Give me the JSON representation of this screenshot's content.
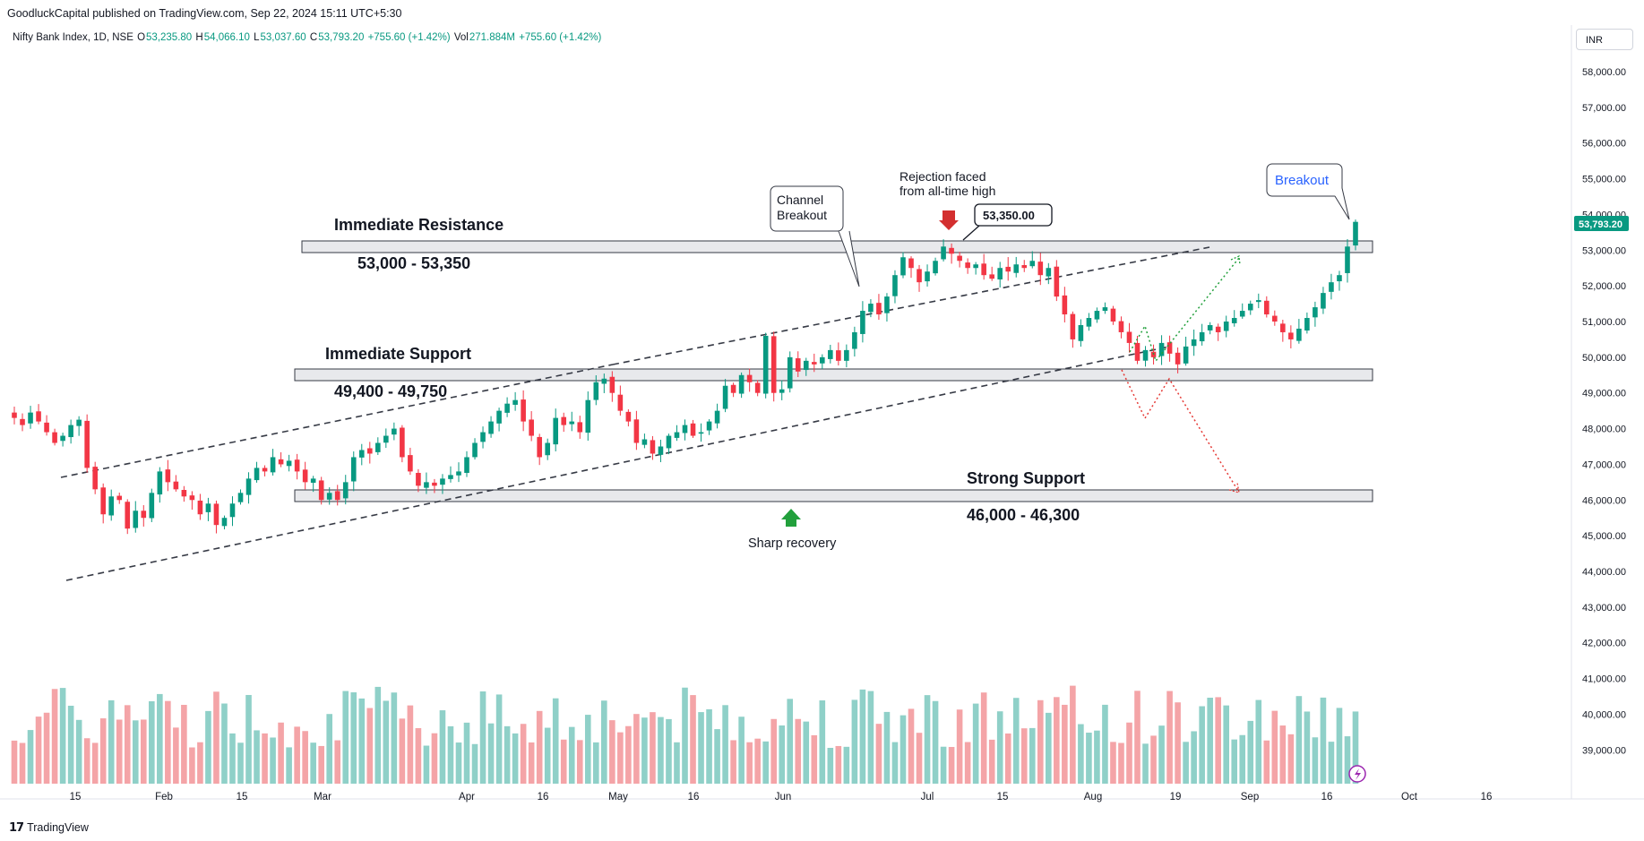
{
  "header": {
    "published_by": "GoodluckCapital published on TradingView.com, Sep 22, 2024 15:11 UTC+5:30"
  },
  "legend": {
    "symbol": "Nifty Bank Index, 1D, NSE",
    "open_label": "O",
    "open": "53,235.80",
    "high_label": "H",
    "high": "54,066.10",
    "low_label": "L",
    "low": "53,037.60",
    "close_label": "C",
    "close": "53,793.20",
    "change": "+755.60 (+1.42%)",
    "vol_label": "Vol",
    "vol": "271.884M",
    "change2": "+755.60 (+1.42%)"
  },
  "currency": "INR",
  "footer": {
    "brand": "TradingView"
  },
  "colors": {
    "up": "#089981",
    "down": "#f23645",
    "vol_up": "#8fd0c8",
    "vol_down": "#f4a4a7"
  },
  "annotations": {
    "immediate_resistance": "Immediate Resistance",
    "immediate_resistance_range": "53,000 - 53,350",
    "immediate_support": "Immediate Support",
    "immediate_support_range": "49,400 - 49,750",
    "strong_support": "Strong Support",
    "strong_support_range": "46,000 - 46,300",
    "channel_breakout_1": "Channel",
    "channel_breakout_2": "Breakout",
    "rejection_1": "Rejection faced",
    "rejection_2": "from all-time high",
    "ath_price": "53,350.00",
    "breakout": "Breakout",
    "sharp_recovery": "Sharp recovery",
    "last_price": "53,793.20"
  },
  "chart_data": {
    "type": "candlestick",
    "title": "Nifty Bank Index, 1D, NSE",
    "ylim": [
      38000,
      58500
    ],
    "y_ticks": [
      "39,000.00",
      "40,000.00",
      "41,000.00",
      "42,000.00",
      "43,000.00",
      "44,000.00",
      "45,000.00",
      "46,000.00",
      "47,000.00",
      "48,000.00",
      "49,000.00",
      "50,000.00",
      "51,000.00",
      "52,000.00",
      "53,000.00",
      "54,000.00",
      "55,000.00",
      "56,000.00",
      "57,000.00",
      "58,000.00"
    ],
    "x_ticks": [
      "15",
      "Feb",
      "15",
      "Mar",
      "Apr",
      "16",
      "May",
      "16",
      "Jun",
      "Jul",
      "15",
      "Aug",
      "19",
      "Sep",
      "16",
      "Oct",
      "16"
    ],
    "zones": [
      {
        "name": "Immediate Resistance",
        "low": 53000,
        "high": 53350
      },
      {
        "name": "Immediate Support",
        "low": 49400,
        "high": 49750
      },
      {
        "name": "Strong Support",
        "low": 46000,
        "high": 46300
      }
    ],
    "closes": [
      48300,
      48100,
      48450,
      48200,
      47900,
      47600,
      47800,
      48100,
      48250,
      46900,
      46300,
      45600,
      46100,
      46000,
      45200,
      45700,
      45500,
      46200,
      46800,
      46500,
      46300,
      46100,
      46000,
      45600,
      45900,
      45300,
      45500,
      45900,
      46200,
      46600,
      46900,
      46800,
      47200,
      47000,
      47100,
      46800,
      46500,
      46600,
      46000,
      46200,
      46000,
      46500,
      47200,
      47400,
      47300,
      47600,
      47800,
      48000,
      47200,
      46800,
      46400,
      46500,
      46400,
      46600,
      46700,
      46800,
      47200,
      47600,
      47900,
      48200,
      48500,
      48700,
      48800,
      48200,
      47800,
      47200,
      47600,
      48300,
      48100,
      48200,
      47900,
      48800,
      49300,
      49400,
      49000,
      48500,
      48200,
      47600,
      47700,
      47300,
      47500,
      47800,
      47900,
      48100,
      47800,
      47900,
      48200,
      48500,
      49200,
      49000,
      49500,
      49300,
      49000,
      50600,
      49000,
      49100,
      50000,
      49600,
      49900,
      49800,
      50000,
      50200,
      49900,
      50200,
      50700,
      51300,
      51500,
      51200,
      51700,
      52300,
      52800,
      52500,
      52100,
      52400,
      52700,
      53100,
      52900,
      52700,
      52500,
      52600,
      52300,
      52200,
      52500,
      52400,
      52600,
      52500,
      52700,
      52300,
      52500,
      51700,
      51200,
      50500,
      50900,
      51100,
      51300,
      51400,
      51000,
      50700,
      50400,
      49900,
      50200,
      50000,
      50400,
      50100,
      49800,
      50300,
      50500,
      50700,
      50900,
      50700,
      51000,
      51100,
      51300,
      51500,
      51600,
      51200,
      51000,
      50700,
      50500,
      50800,
      51100,
      51400,
      51800,
      52100,
      52300,
      53100,
      53793
    ]
  }
}
